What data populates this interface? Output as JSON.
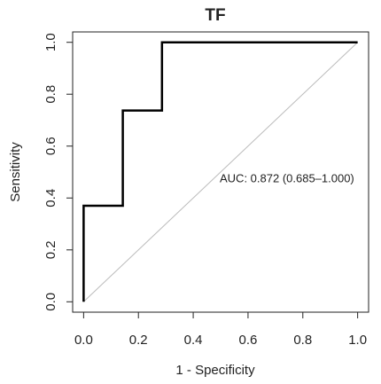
{
  "chart_data": {
    "type": "line",
    "title": "TF",
    "x_label": "1 - Specificity",
    "y_label": "Sensitivity",
    "x": [
      0,
      0,
      0.143,
      0.143,
      0.286,
      0.286,
      1
    ],
    "values": [
      0,
      0.37,
      0.37,
      0.737,
      0.737,
      1,
      1
    ],
    "color": "#000000",
    "annotation": "AUC: 0.872 (0.685–1.000)",
    "xlim": [
      -0.04,
      1.04
    ],
    "ylim": [
      -0.04,
      1.04
    ],
    "xticks": [
      {
        "value": 0,
        "label": "0.0"
      },
      {
        "value": 0.2,
        "label": "0.2"
      },
      {
        "value": 0.4,
        "label": "0.4"
      },
      {
        "value": 0.6,
        "label": "0.6"
      },
      {
        "value": 0.8,
        "label": "0.8"
      },
      {
        "value": 1,
        "label": "1.0"
      }
    ],
    "yticks": [
      {
        "value": 0,
        "label": "0.0"
      },
      {
        "value": 0.2,
        "label": "0.2"
      },
      {
        "value": 0.4,
        "label": "0.4"
      },
      {
        "value": 0.6,
        "label": "0.6"
      },
      {
        "value": 0.8,
        "label": "0.8"
      },
      {
        "value": 1,
        "label": "1.0"
      }
    ]
  }
}
